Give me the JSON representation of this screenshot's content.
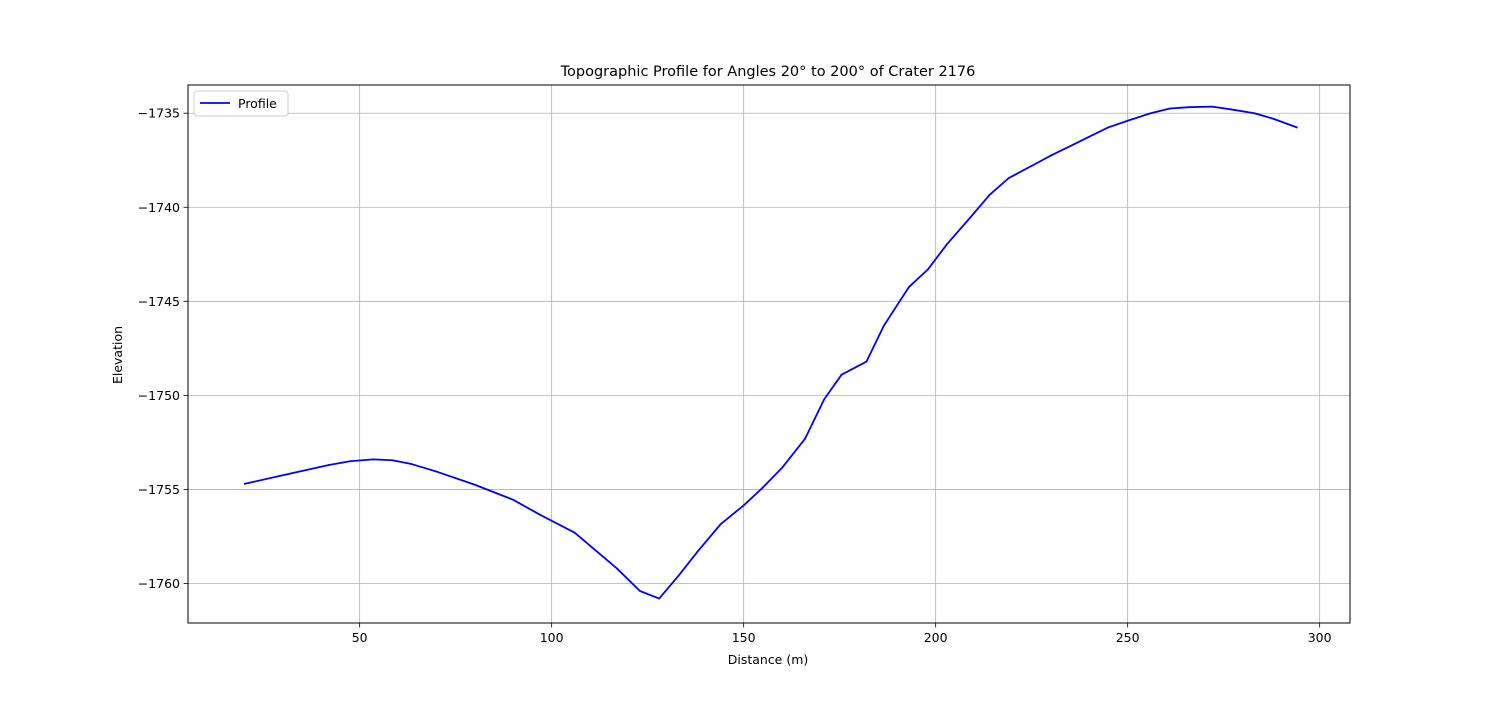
{
  "chart_data": {
    "type": "line",
    "title": "Topographic Profile for Angles 20° to 200° of Crater 2176",
    "xlabel": "Distance (m)",
    "ylabel": "Elevation",
    "xlim": [
      5.3,
      307.9
    ],
    "ylim": [
      -1762.1,
      -1733.5
    ],
    "x_ticks": [
      50,
      100,
      150,
      200,
      250,
      300
    ],
    "y_ticks": [
      -1760,
      -1755,
      -1750,
      -1745,
      -1740,
      -1735
    ],
    "x_tick_labels": [
      "50",
      "100",
      "150",
      "200",
      "250",
      "300"
    ],
    "y_tick_labels": [
      "−1760",
      "−1755",
      "−1750",
      "−1745",
      "−1740",
      "−1735"
    ],
    "grid": true,
    "legend_position": "top-left",
    "series": [
      {
        "name": "Profile",
        "color": "#0000ff",
        "x": [
          20.1,
          31,
          42,
          47.5,
          53.5,
          58.5,
          63.5,
          70,
          80,
          90,
          97,
          106,
          117,
          123,
          128,
          133,
          138,
          144,
          150,
          155,
          160,
          166,
          171,
          175.5,
          182,
          186.5,
          193,
          198,
          203,
          209,
          214,
          219,
          225,
          230,
          236,
          241,
          245,
          250,
          256,
          261,
          266,
          272,
          277,
          283,
          288,
          294
        ],
        "y": [
          -1754.7,
          -1754.2,
          -1753.7,
          -1753.5,
          -1753.4,
          -1753.45,
          -1753.65,
          -1754.05,
          -1754.75,
          -1755.55,
          -1756.35,
          -1757.3,
          -1759.2,
          -1760.4,
          -1760.8,
          -1759.6,
          -1758.3,
          -1756.85,
          -1755.85,
          -1754.9,
          -1753.85,
          -1752.3,
          -1750.2,
          -1748.9,
          -1748.2,
          -1746.3,
          -1744.25,
          -1743.3,
          -1741.95,
          -1740.55,
          -1739.35,
          -1738.45,
          -1737.8,
          -1737.25,
          -1736.65,
          -1736.15,
          -1735.75,
          -1735.4,
          -1735.0,
          -1734.75,
          -1734.68,
          -1734.65,
          -1734.8,
          -1735.0,
          -1735.3,
          -1735.75
        ]
      }
    ]
  }
}
